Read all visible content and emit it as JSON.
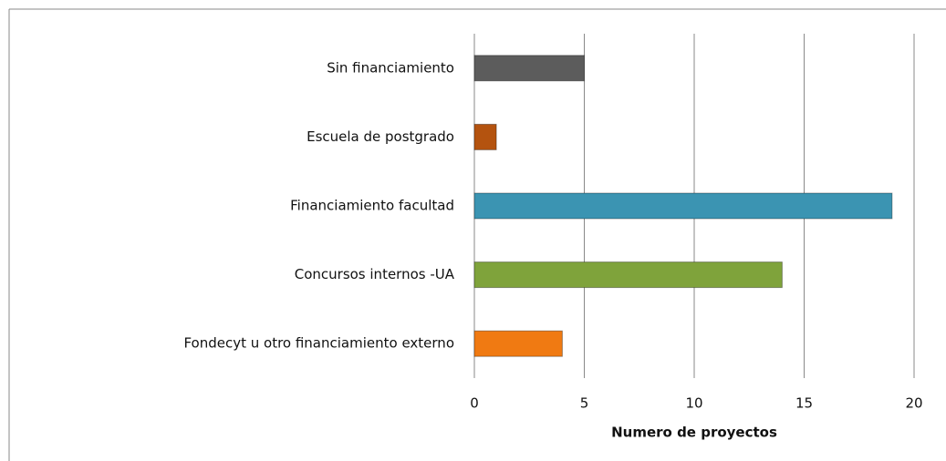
{
  "chart_data": {
    "type": "bar",
    "orientation": "horizontal",
    "categories": [
      "Sin financiamiento",
      "Escuela de postgrado",
      "Financiamiento facultad",
      "Concursos internos -UA",
      "Fondecyt u otro financiamiento externo"
    ],
    "values": [
      5,
      1,
      19,
      14,
      4
    ],
    "colors": [
      "#5c5c5c",
      "#b4530f",
      "#3b94b2",
      "#7fa33b",
      "#f07a12"
    ],
    "xlim": [
      0,
      20
    ],
    "xticks": [
      0,
      5,
      10,
      15,
      20
    ],
    "xlabel": "Numero de proyectos",
    "grid": true
  }
}
